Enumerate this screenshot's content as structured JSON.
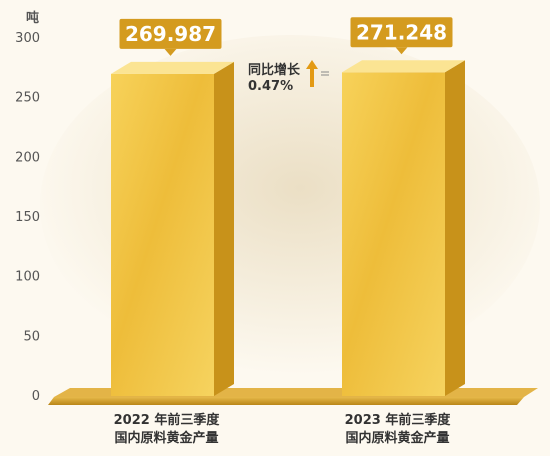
{
  "chart_data": {
    "type": "bar",
    "title": "",
    "xlabel": "",
    "ylabel": "吨",
    "ylim": [
      0,
      300
    ],
    "yticks": [
      "0",
      "50",
      "100",
      "150",
      "200",
      "250",
      "300"
    ],
    "grid": false,
    "categories": [
      [
        "2022 年前三季度",
        "国内原料黄金产量"
      ],
      [
        "2023 年前三季度",
        "国内原料黄金产量"
      ]
    ],
    "values": [
      269.987,
      271.248
    ],
    "data_labels": [
      "269.987",
      "271.248"
    ],
    "annotation": {
      "line1": "同比增长",
      "line2": "0.47%",
      "arrow": "up-arrow-icon"
    },
    "colors": {
      "bar_front": "#f2c340",
      "bar_top": "#fbe493",
      "bar_side": "#c8921a",
      "label_bg": "#d49b1f",
      "label_text": "#ffffff",
      "axis_text": "#555555",
      "base": "#c9982c",
      "arrow": "#e39a14"
    }
  }
}
